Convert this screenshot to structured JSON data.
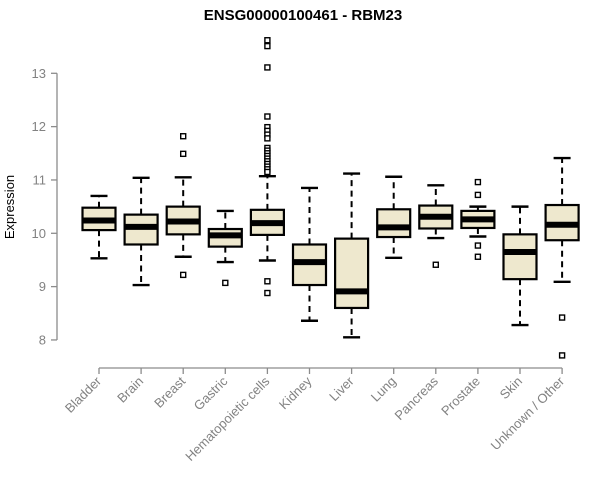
{
  "chart_data": {
    "type": "boxplot",
    "title": "ENSG00000100461 - RBM23",
    "ylabel": "Expression",
    "xlabel": "",
    "y_axis": {
      "min": 8,
      "max": 13,
      "ticks": [
        8,
        9,
        10,
        11,
        12,
        13
      ]
    },
    "grid": "off",
    "categories": [
      "Bladder",
      "Brain",
      "Breast",
      "Gastric",
      "Hematopoietic cells",
      "Kidney",
      "Liver",
      "Lung",
      "Pancreas",
      "Prostate",
      "Skin",
      "Unknown / Other"
    ],
    "boxes": [
      {
        "category": "Bladder",
        "low": 9.53,
        "q1": 10.06,
        "median": 10.24,
        "q3": 10.48,
        "high": 10.7,
        "outliers": []
      },
      {
        "category": "Brain",
        "low": 9.03,
        "q1": 9.79,
        "median": 10.12,
        "q3": 10.35,
        "high": 11.04,
        "outliers": []
      },
      {
        "category": "Breast",
        "low": 9.56,
        "q1": 9.98,
        "median": 10.22,
        "q3": 10.5,
        "high": 11.05,
        "outliers": [
          11.82,
          11.49,
          9.22
        ]
      },
      {
        "category": "Gastric",
        "low": 9.46,
        "q1": 9.75,
        "median": 9.96,
        "q3": 10.08,
        "high": 10.42,
        "outliers": [
          9.07
        ]
      },
      {
        "category": "Hematopoietic cells",
        "low": 9.49,
        "q1": 9.97,
        "median": 10.19,
        "q3": 10.44,
        "high": 11.07,
        "outliers": [
          13.62,
          13.51,
          13.11,
          12.19,
          11.99,
          11.92,
          11.85,
          11.78,
          11.6,
          11.55,
          11.5,
          11.45,
          11.4,
          11.35,
          11.3,
          11.25,
          11.2,
          11.15,
          9.1,
          8.88
        ]
      },
      {
        "category": "Kidney",
        "low": 8.36,
        "q1": 9.03,
        "median": 9.46,
        "q3": 9.79,
        "high": 10.85,
        "outliers": []
      },
      {
        "category": "Liver",
        "low": 8.05,
        "q1": 8.6,
        "median": 8.91,
        "q3": 9.9,
        "high": 11.12,
        "outliers": []
      },
      {
        "category": "Lung",
        "low": 9.54,
        "q1": 9.93,
        "median": 10.11,
        "q3": 10.45,
        "high": 11.06,
        "outliers": []
      },
      {
        "category": "Pancreas",
        "low": 9.91,
        "q1": 10.09,
        "median": 10.31,
        "q3": 10.52,
        "high": 10.9,
        "outliers": [
          9.41
        ]
      },
      {
        "category": "Prostate",
        "low": 9.94,
        "q1": 10.1,
        "median": 10.26,
        "q3": 10.42,
        "high": 10.5,
        "outliers": [
          10.96,
          10.72,
          9.77,
          9.56
        ]
      },
      {
        "category": "Skin",
        "low": 8.28,
        "q1": 9.14,
        "median": 9.65,
        "q3": 9.98,
        "high": 10.5,
        "outliers": []
      },
      {
        "category": "Unknown / Other",
        "low": 9.09,
        "q1": 9.87,
        "median": 10.16,
        "q3": 10.53,
        "high": 11.41,
        "outliers": [
          8.42,
          7.71
        ]
      }
    ],
    "colors": {
      "box_fill": "#EEE8CE",
      "box_border": "#000000",
      "median": "#000000",
      "whisker": "#000000",
      "outlier_stroke": "#000000",
      "outlier_fill": "#ffffff",
      "axis_line": "#8c8c8c",
      "axis_text": "#828282",
      "title": "#000000"
    }
  }
}
